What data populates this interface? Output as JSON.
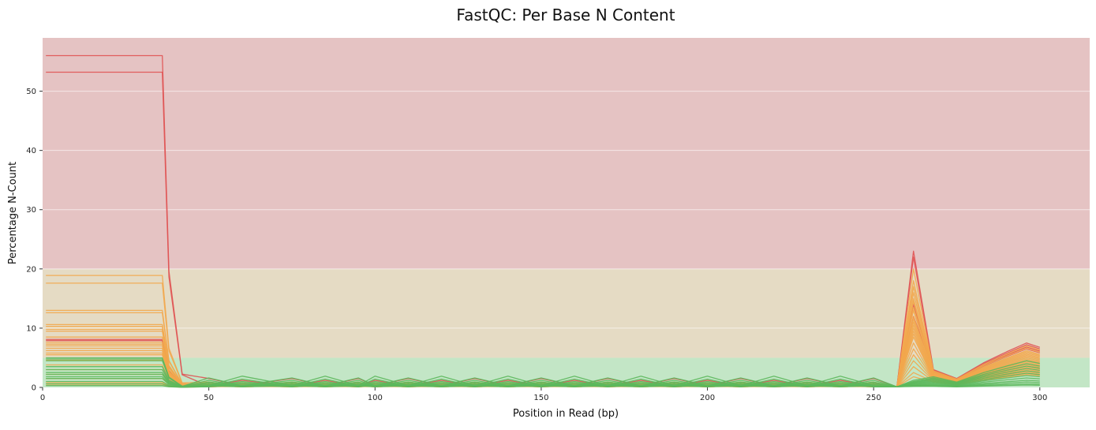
{
  "chart_data": {
    "type": "line",
    "title": "FastQC: Per Base N Content",
    "xlabel": "Position in Read (bp)",
    "ylabel": "Percentage N-Count",
    "xlim": [
      0,
      315
    ],
    "ylim": [
      0,
      59
    ],
    "x_ticks": [
      0,
      50,
      100,
      150,
      200,
      250,
      300
    ],
    "y_ticks": [
      0,
      10,
      20,
      30,
      40,
      50
    ],
    "grid": "horizontal",
    "bands": [
      {
        "from": 0,
        "to": 5,
        "color": "#c3e6c6"
      },
      {
        "from": 5,
        "to": 20,
        "color": "#e5dbc4"
      },
      {
        "from": 20,
        "to": 59,
        "color": "#e5c3c3"
      }
    ],
    "colors": {
      "fail": "#e05252",
      "warn": "#f2a74c",
      "pass": "#5cb85c"
    },
    "x": [
      1,
      8,
      16,
      24,
      32,
      36,
      38,
      42,
      50,
      60,
      75,
      85,
      95,
      100,
      110,
      120,
      130,
      140,
      150,
      160,
      170,
      180,
      190,
      200,
      210,
      220,
      230,
      240,
      250,
      257,
      262,
      268,
      275,
      283,
      290,
      296,
      300
    ],
    "early_points": 8,
    "series": [
      {
        "status": "fail",
        "early": 56.0,
        "bump": [
          0.3,
          1.5
        ],
        "p262": 23.0,
        "tail": 7.5
      },
      {
        "status": "fail",
        "early": 53.2,
        "bump": [
          0.2,
          1.2
        ],
        "p262": 22.0,
        "tail": 6.8
      },
      {
        "status": "fail",
        "early": 8.1,
        "bump": [
          0.1,
          0.6
        ],
        "p262": 14.0,
        "tail": 6.5
      },
      {
        "status": "fail",
        "early": 7.9,
        "bump": [
          0.1,
          0.5
        ],
        "p262": 12.0,
        "tail": 7.2
      },
      {
        "status": "warn",
        "early": 18.9,
        "bump": [
          0.2,
          0.9
        ],
        "p262": 20.0,
        "tail": 7.0
      },
      {
        "status": "warn",
        "early": 17.6,
        "bump": [
          0.2,
          0.8
        ],
        "p262": 18.0,
        "tail": 6.6
      },
      {
        "status": "warn",
        "early": 13.0,
        "bump": [
          0.1,
          0.7
        ],
        "p262": 17.0,
        "tail": 6.2
      },
      {
        "status": "warn",
        "early": 12.6,
        "bump": [
          0.1,
          0.6
        ],
        "p262": 16.0,
        "tail": 6.0
      },
      {
        "status": "warn",
        "early": 10.6,
        "bump": [
          0.1,
          0.6
        ],
        "p262": 15.0,
        "tail": 5.8
      },
      {
        "status": "warn",
        "early": 10.3,
        "bump": [
          0.1,
          0.5
        ],
        "p262": 14.5,
        "tail": 5.6
      },
      {
        "status": "warn",
        "early": 9.8,
        "bump": [
          0.1,
          0.5
        ],
        "p262": 13.5,
        "tail": 5.4
      },
      {
        "status": "warn",
        "early": 9.5,
        "bump": [
          0.1,
          0.5
        ],
        "p262": 13.0,
        "tail": 5.2
      },
      {
        "status": "warn",
        "early": 8.5,
        "bump": [
          0.1,
          0.4
        ],
        "p262": 12.0,
        "tail": 5.0
      },
      {
        "status": "warn",
        "early": 7.6,
        "bump": [
          0.1,
          0.4
        ],
        "p262": 11.5,
        "tail": 4.8
      },
      {
        "status": "warn",
        "early": 7.3,
        "bump": [
          0.1,
          0.4
        ],
        "p262": 11.0,
        "tail": 4.6
      },
      {
        "status": "warn",
        "early": 7.0,
        "bump": [
          0.1,
          0.4
        ],
        "p262": 10.5,
        "tail": 4.4
      },
      {
        "status": "warn",
        "early": 6.6,
        "bump": [
          0.1,
          0.4
        ],
        "p262": 10.0,
        "tail": 4.2
      },
      {
        "status": "warn",
        "early": 6.2,
        "bump": [
          0.1,
          0.3
        ],
        "p262": 9.5,
        "tail": 4.0
      },
      {
        "status": "warn",
        "early": 5.8,
        "bump": [
          0.1,
          0.3
        ],
        "p262": 9.0,
        "tail": 3.8
      },
      {
        "status": "warn",
        "early": 5.5,
        "bump": [
          0.1,
          0.3
        ],
        "p262": 8.5,
        "tail": 3.6
      },
      {
        "status": "warn",
        "early": 4.6,
        "bump": [
          0.1,
          0.3
        ],
        "p262": 7.5,
        "tail": 3.4
      },
      {
        "status": "warn",
        "early": 3.8,
        "bump": [
          0.1,
          0.3
        ],
        "p262": 6.5,
        "tail": 3.2
      },
      {
        "status": "warn",
        "early": 3.0,
        "bump": [
          0.1,
          0.3
        ],
        "p262": 5.5,
        "tail": 3.0
      },
      {
        "status": "warn",
        "early": 2.2,
        "bump": [
          0.1,
          0.3
        ],
        "p262": 4.5,
        "tail": 2.8
      },
      {
        "status": "warn",
        "early": 1.5,
        "bump": [
          0.1,
          0.3
        ],
        "p262": 3.5,
        "tail": 2.6
      },
      {
        "status": "warn",
        "early": 0.8,
        "bump": [
          0.1,
          0.3
        ],
        "p262": 2.5,
        "tail": 2.4
      },
      {
        "status": "warn",
        "early": 0.4,
        "bump": [
          0.1,
          0.3
        ],
        "p262": 1.8,
        "tail": 2.2
      },
      {
        "status": "pass",
        "early": 5.0,
        "bump": [
          0.3,
          1.9
        ],
        "p262": 1.2,
        "tail": 4.5
      },
      {
        "status": "pass",
        "early": 4.8,
        "bump": [
          0.3,
          1.6
        ],
        "p262": 1.0,
        "tail": 4.0
      },
      {
        "status": "pass",
        "early": 4.5,
        "bump": [
          0.2,
          1.4
        ],
        "p262": 0.9,
        "tail": 3.6
      },
      {
        "status": "pass",
        "early": 3.5,
        "bump": [
          0.2,
          1.2
        ],
        "p262": 0.8,
        "tail": 3.2
      },
      {
        "status": "pass",
        "early": 3.0,
        "bump": [
          0.2,
          1.0
        ],
        "p262": 0.7,
        "tail": 2.8
      },
      {
        "status": "pass",
        "early": 2.5,
        "bump": [
          0.2,
          0.9
        ],
        "p262": 0.6,
        "tail": 2.4
      },
      {
        "status": "pass",
        "early": 2.2,
        "bump": [
          0.1,
          0.8
        ],
        "p262": 0.5,
        "tail": 2.0
      },
      {
        "status": "pass",
        "early": 1.8,
        "bump": [
          0.1,
          0.7
        ],
        "p262": 0.4,
        "tail": 1.6
      },
      {
        "status": "pass",
        "early": 1.5,
        "bump": [
          0.1,
          0.6
        ],
        "p262": 0.3,
        "tail": 1.2
      },
      {
        "status": "pass",
        "early": 1.0,
        "bump": [
          0.1,
          0.5
        ],
        "p262": 0.3,
        "tail": 0.9
      },
      {
        "status": "pass",
        "early": 0.6,
        "bump": [
          0.1,
          0.4
        ],
        "p262": 0.2,
        "tail": 0.6
      },
      {
        "status": "pass",
        "early": 0.3,
        "bump": [
          0.1,
          0.3
        ],
        "p262": 0.2,
        "tail": 0.4
      }
    ]
  }
}
